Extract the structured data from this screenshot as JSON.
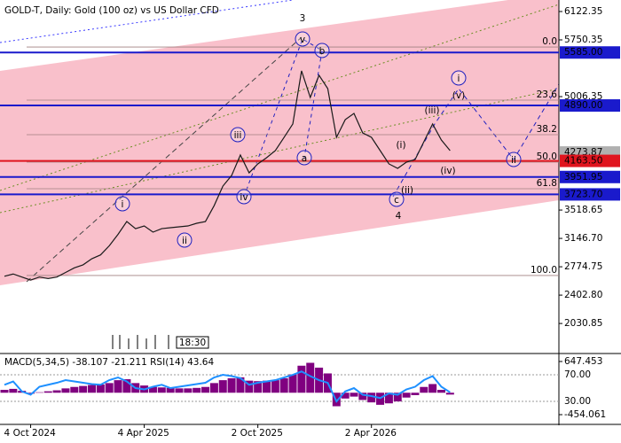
{
  "chart_data": [
    {
      "type": "line",
      "title": "GOLD-T, Daily:  Gold (100 oz) vs US Dollar CFD",
      "categories": [
        null,
        null,
        null,
        "4 Oct 2024",
        null,
        null,
        null,
        null,
        null,
        null,
        null,
        null,
        null,
        null,
        null,
        null,
        "4 Apr 2025",
        null,
        null,
        null,
        null,
        null,
        null,
        null,
        null,
        null,
        null,
        null,
        null,
        "2 Oct 2025",
        null,
        null,
        null,
        null,
        null,
        null,
        null,
        null,
        null,
        null,
        null,
        null,
        "2 Apr 2026",
        null,
        null,
        null,
        null,
        null,
        null,
        null,
        null,
        null
      ],
      "series": [
        {
          "color": "#1a1a1a",
          "values": [
            2650,
            2680,
            2640,
            2600,
            2640,
            2620,
            2640,
            2700,
            2760,
            2800,
            2880,
            2930,
            3050,
            3200,
            3368,
            3275,
            3310,
            3229,
            3275,
            3287,
            3299,
            3310,
            3345,
            3368,
            3577,
            3833,
            3972,
            4240,
            4007,
            4124,
            4205,
            4298,
            4472,
            4647,
            5344,
            4995,
            5286,
            5111,
            4472,
            4704,
            4786,
            4530,
            4472,
            4298,
            4124,
            4065,
            4147,
            4182,
            4414,
            4647,
            4437,
            4298
          ]
        }
      ],
      "ylim": [
        1648.6,
        6273.4
      ],
      "yticks": [
        6122.35,
        5750.35,
        5006.35,
        3518.65,
        {
          "value": 3146.7,
          "label": "3146.70"
        },
        2774.75,
        {
          "value": 2402.8,
          "label": "2402.80"
        },
        2030.85
      ],
      "levels": [
        {
          "value": 5585,
          "label": "5585.00",
          "color": "#1a1acc"
        },
        {
          "value": 4890,
          "label": "4890.00",
          "color": "#1a1acc"
        },
        {
          "value": 4163.5,
          "label": "4163.50",
          "color": "#e0141e"
        },
        {
          "value": 3951.95,
          "label": "3951.95",
          "color": "#1a1acc"
        },
        {
          "value": 3723.7,
          "label": "3723.70",
          "color": "#1a1acc"
        }
      ],
      "last_price": {
        "value": 4273.87,
        "label": "4273.87",
        "color": "#b0b0b0"
      },
      "fib_levels": [
        {
          "level": "0.0",
          "price": 5657
        },
        {
          "level": "23.6",
          "price": 4960
        },
        {
          "level": "38.2",
          "price": 4507
        },
        {
          "level": "50.0",
          "price": 4147
        },
        {
          "level": "61.8",
          "price": 3798
        },
        {
          "level": "100.0",
          "price": 2660
        }
      ],
      "wave_labels": [
        {
          "text": "3",
          "circled": false
        },
        {
          "text": "v",
          "circled": true
        },
        {
          "text": "b",
          "circled": true
        },
        {
          "text": "i",
          "circled": true
        },
        {
          "text": "(v)",
          "circled": false
        },
        {
          "text": "(iii)",
          "circled": false
        },
        {
          "text": "(i)",
          "circled": false
        },
        {
          "text": "a",
          "circled": true
        },
        {
          "text": "iii",
          "circled": true
        },
        {
          "text": "iv",
          "circled": true
        },
        {
          "text": "i",
          "circled": true
        },
        {
          "text": "ii",
          "circled": true
        },
        {
          "text": "(iv)",
          "circled": false
        },
        {
          "text": "(ii)",
          "circled": false
        },
        {
          "text": "c",
          "circled": true
        },
        {
          "text": "4",
          "circled": false
        },
        {
          "text": "ii",
          "circled": true
        }
      ],
      "time_label": "18:30"
    },
    {
      "type": "bar",
      "title": "MACD(5,34,5) -38.107 -21.211 RSI(14) 43.64",
      "series": [
        {
          "color": "#800080",
          "values": [
            60,
            80,
            40,
            -20,
            10,
            30,
            50,
            90,
            120,
            140,
            160,
            170,
            200,
            260,
            280,
            200,
            150,
            120,
            110,
            100,
            90,
            90,
            100,
            120,
            200,
            260,
            300,
            320,
            250,
            240,
            250,
            260,
            300,
            380,
            560,
            620,
            520,
            400,
            -280,
            -120,
            -80,
            -150,
            -200,
            -250,
            -220,
            -180,
            -100,
            -50,
            120,
            180,
            60,
            -38
          ]
        },
        {
          "type": "line",
          "axis": "y2",
          "color": "#1e90ff",
          "values": [
            55,
            60,
            45,
            40,
            52,
            55,
            58,
            62,
            60,
            58,
            56,
            55,
            62,
            66,
            60,
            50,
            48,
            52,
            55,
            50,
            52,
            54,
            56,
            58,
            66,
            70,
            68,
            65,
            55,
            58,
            60,
            62,
            66,
            70,
            75,
            68,
            62,
            58,
            30,
            45,
            50,
            40,
            38,
            35,
            42,
            40,
            48,
            52,
            62,
            68,
            52,
            43.64
          ]
        }
      ],
      "ylim": [
        -637.7,
        794.3
      ],
      "yticks": [
        647.453,
        -454.061
      ],
      "y2lim": [
        -3.3,
        100.7
      ],
      "y2ticks": [
        {
          "value": 70,
          "label": "70.00"
        },
        {
          "value": 30,
          "label": "30.00"
        }
      ]
    }
  ]
}
